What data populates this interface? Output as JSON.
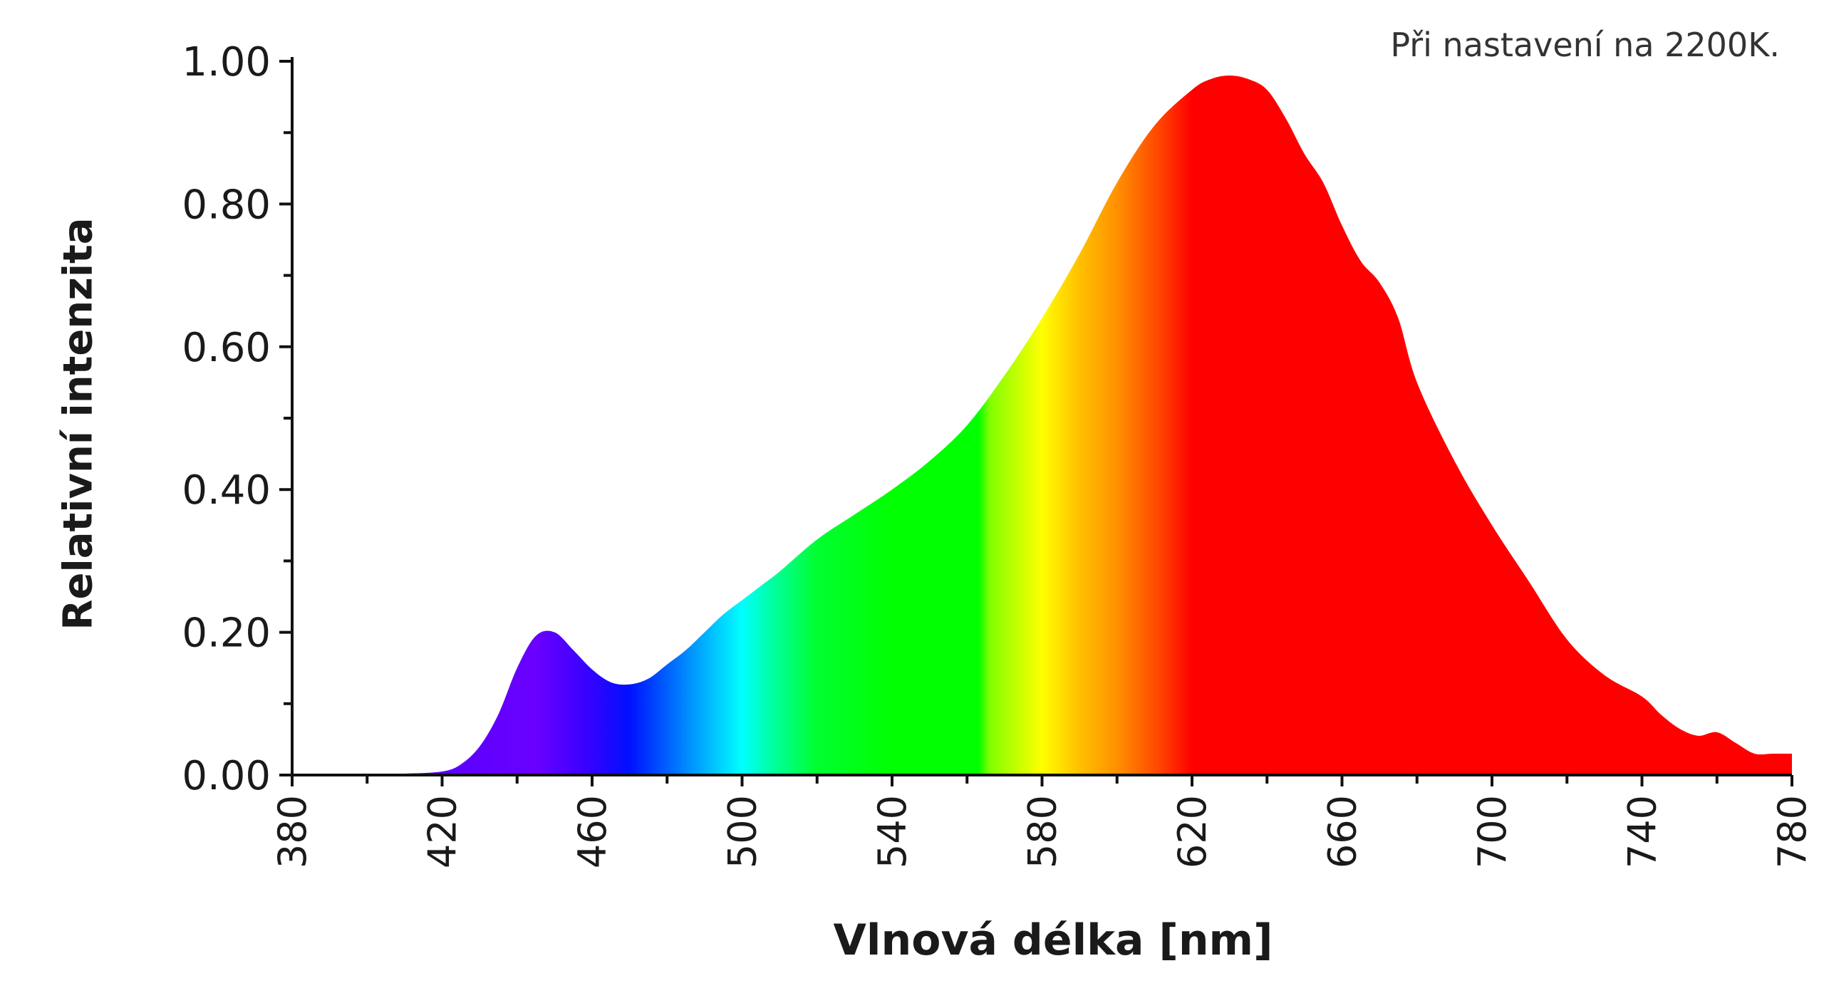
{
  "note": "Při nastavení na 2200K.",
  "chart_data": {
    "type": "area",
    "title": "",
    "xlabel": "Vlnová délka [nm]",
    "ylabel": "Relativní intenzita",
    "xlim": [
      380,
      780
    ],
    "ylim": [
      0,
      1
    ],
    "x_ticks": [
      "380",
      "420",
      "460",
      "500",
      "540",
      "580",
      "620",
      "660",
      "700",
      "740",
      "780"
    ],
    "y_ticks": [
      "0.00",
      "0.20",
      "0.40",
      "0.60",
      "0.80",
      "1.00"
    ],
    "grid": false,
    "fill": "visible-spectrum gradient (violet → blue → cyan → green → yellow → orange → red)",
    "series": [
      {
        "x": [
          380,
          400,
          410,
          420,
          425,
          430,
          435,
          440,
          445,
          450,
          455,
          460,
          465,
          470,
          475,
          480,
          485,
          490,
          495,
          500,
          505,
          510,
          520,
          530,
          540,
          550,
          560,
          570,
          580,
          590,
          600,
          610,
          620,
          625,
          630,
          635,
          640,
          645,
          650,
          655,
          660,
          665,
          670,
          675,
          680,
          690,
          700,
          710,
          720,
          730,
          740,
          745,
          750,
          755,
          760,
          765,
          770,
          775,
          780
        ],
        "y": [
          0.0,
          0.001,
          0.002,
          0.005,
          0.015,
          0.04,
          0.085,
          0.15,
          0.195,
          0.2,
          0.175,
          0.148,
          0.13,
          0.127,
          0.135,
          0.155,
          0.175,
          0.2,
          0.225,
          0.245,
          0.265,
          0.285,
          0.33,
          0.365,
          0.4,
          0.44,
          0.49,
          0.56,
          0.64,
          0.73,
          0.83,
          0.91,
          0.96,
          0.975,
          0.98,
          0.975,
          0.96,
          0.92,
          0.87,
          0.83,
          0.77,
          0.72,
          0.69,
          0.64,
          0.55,
          0.44,
          0.35,
          0.27,
          0.19,
          0.14,
          0.11,
          0.085,
          0.065,
          0.055,
          0.06,
          0.045,
          0.03,
          0.03,
          0.03
        ]
      }
    ]
  }
}
